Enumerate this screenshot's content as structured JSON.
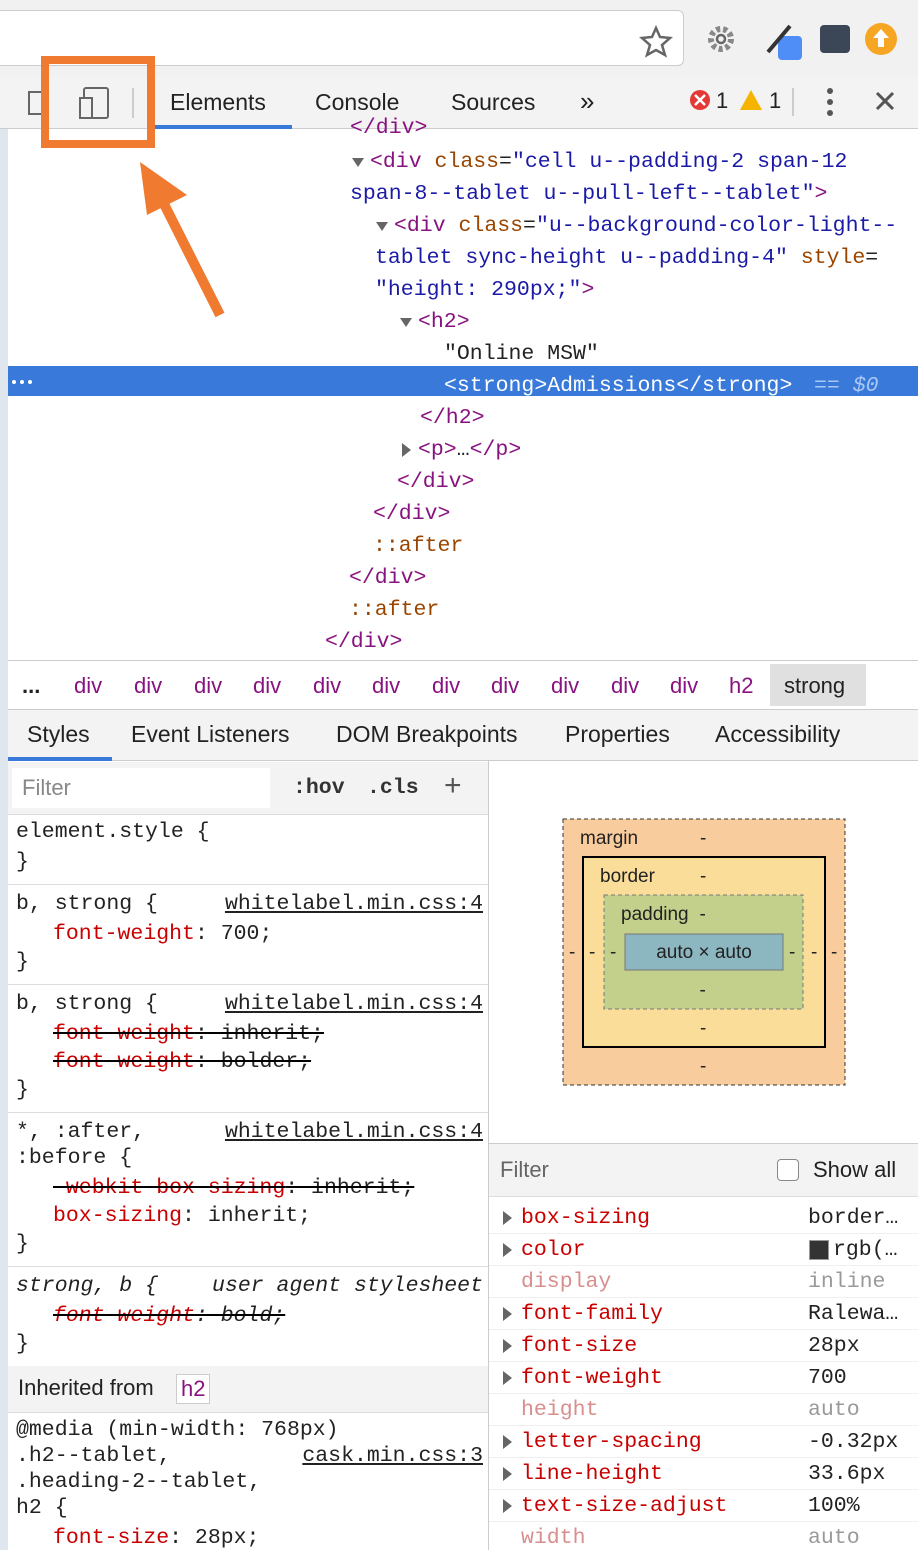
{
  "toolbar": {
    "tabs": [
      "Elements",
      "Console",
      "Sources"
    ],
    "more": "»",
    "errors": "1",
    "warnings": "1"
  },
  "dom": {
    "lines": [
      {
        "text": "</div>"
      },
      {
        "text": "<div class=\"cell u--padding-2 span-12"
      },
      {
        "text": "span-8--tablet u--pull-left--tablet\">"
      },
      {
        "text": "<div class=\"u--background-color-light--"
      },
      {
        "text": "tablet sync-height u--padding-4\" style="
      },
      {
        "text": "\"height: 290px;\">"
      },
      {
        "text": "<h2>"
      },
      {
        "text": "\"Online MSW\""
      },
      {
        "text": "<strong>Admissions</strong>",
        "selected": true
      },
      {
        "text": "</h2>"
      },
      {
        "text": "<p>…</p>"
      },
      {
        "text": "</div>"
      },
      {
        "text": "</div>"
      },
      {
        "text": "::after"
      },
      {
        "text": "</div>"
      },
      {
        "text": "::after"
      },
      {
        "text": "</div>"
      }
    ],
    "selected_suffix": "== $0"
  },
  "breadcrumbs": [
    "...",
    "div",
    "div",
    "div",
    "div",
    "div",
    "div",
    "div",
    "div",
    "div",
    "div",
    "div",
    "h2",
    "strong"
  ],
  "subtabs": [
    "Styles",
    "Event Listeners",
    "DOM Breakpoints",
    "Properties",
    "Accessibility"
  ],
  "styles": {
    "filter": "Filter",
    "hov": ":hov",
    "cls": ".cls",
    "add": "+",
    "rules": [
      {
        "selector": [
          "element.style {"
        ],
        "declarations": [],
        "close": "}"
      },
      {
        "selector": [
          "b, strong {"
        ],
        "source": "whitelabel.min.css:4",
        "declarations": [
          {
            "text": "font-weight: 700;",
            "struck": false
          }
        ],
        "close": "}"
      },
      {
        "selector": [
          "b, strong {"
        ],
        "source": "whitelabel.min.css:4",
        "declarations": [
          {
            "text": "font-weight: inherit;",
            "struck": true
          },
          {
            "text": "font-weight: bolder;",
            "struck": true
          }
        ],
        "close": "}"
      },
      {
        "selector": [
          "*, :after,",
          ":before {"
        ],
        "source": "whitelabel.min.css:4",
        "declarations": [
          {
            "text": "-webkit-box-sizing: inherit;",
            "struck": true
          },
          {
            "text": "box-sizing: inherit;",
            "struck": false
          }
        ],
        "close": "}"
      },
      {
        "selector": [
          "strong, b {"
        ],
        "source": "user agent stylesheet",
        "italic": true,
        "declarations": [
          {
            "text": "font-weight: bold;",
            "struck": true
          }
        ],
        "close": "}"
      }
    ],
    "inherited": {
      "label": "Inherited from",
      "tag": "h2"
    },
    "inherited_rules": [
      {
        "media": "@media (min-width: 768px)",
        "selector": [
          ".h2--tablet,",
          ".heading-2--tablet,",
          "h2 {"
        ],
        "source": "cask.min.css:3",
        "declarations": [
          {
            "text": "font-size: 28px;",
            "struck": false
          }
        ]
      }
    ]
  },
  "box_model": {
    "margin": {
      "label": "margin",
      "top": "-",
      "right": "-",
      "bottom": "-",
      "left": "-"
    },
    "border": {
      "label": "border",
      "top": "-",
      "right": "-",
      "bottom": "-",
      "left": "-"
    },
    "padding": {
      "label": "padding",
      "top": "-",
      "right": "-",
      "bottom": "-",
      "left": "-"
    },
    "content": "auto × auto"
  },
  "computed": {
    "filter": "Filter",
    "show_all": "Show all",
    "rows": [
      {
        "name": "box-sizing",
        "value": "border…",
        "expandable": true,
        "dim": false
      },
      {
        "name": "color",
        "value": "rgb(…",
        "expandable": true,
        "dim": false,
        "swatch": "#333333"
      },
      {
        "name": "display",
        "value": "inline",
        "expandable": false,
        "dim": true
      },
      {
        "name": "font-family",
        "value": "Ralewa…",
        "expandable": true,
        "dim": false
      },
      {
        "name": "font-size",
        "value": "28px",
        "expandable": true,
        "dim": false
      },
      {
        "name": "font-weight",
        "value": "700",
        "expandable": true,
        "dim": false
      },
      {
        "name": "height",
        "value": "auto",
        "expandable": false,
        "dim": true
      },
      {
        "name": "letter-spacing",
        "value": "-0.32px",
        "expandable": true,
        "dim": false
      },
      {
        "name": "line-height",
        "value": "33.6px",
        "expandable": true,
        "dim": false
      },
      {
        "name": "text-size-adjust",
        "value": "100%",
        "expandable": true,
        "dim": false
      },
      {
        "name": "width",
        "value": "auto",
        "expandable": false,
        "dim": true
      }
    ]
  }
}
